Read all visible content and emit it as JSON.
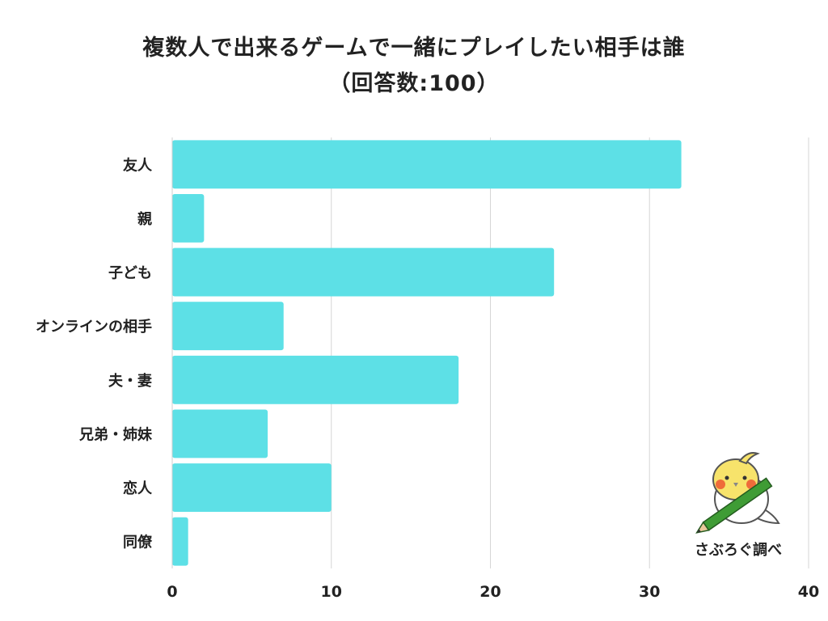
{
  "chart_data": {
    "type": "bar",
    "orientation": "horizontal",
    "title_line1": "複数人で出来るゲームで一緒にプレイしたい相手は誰",
    "title_line2": "（回答数:100）",
    "categories": [
      "友人",
      "親",
      "子ども",
      "オンラインの相手",
      "夫・妻",
      "兄弟・姉妹",
      "恋人",
      "同僚"
    ],
    "values": [
      32,
      2,
      24,
      7,
      18,
      6,
      10,
      1
    ],
    "xlim": [
      0,
      40
    ],
    "xticks": [
      0,
      10,
      20,
      30,
      40
    ],
    "bar_color": "#5de0e6",
    "grid": "vertical",
    "xlabel": "",
    "ylabel": ""
  },
  "credit": "さぶろぐ調べ",
  "mascot": {
    "icon": "cockatiel-with-pencil-icon",
    "colors": {
      "body": "#f7e36b",
      "cheek": "#ef6b3a",
      "pencil": "#3f9c35"
    }
  }
}
